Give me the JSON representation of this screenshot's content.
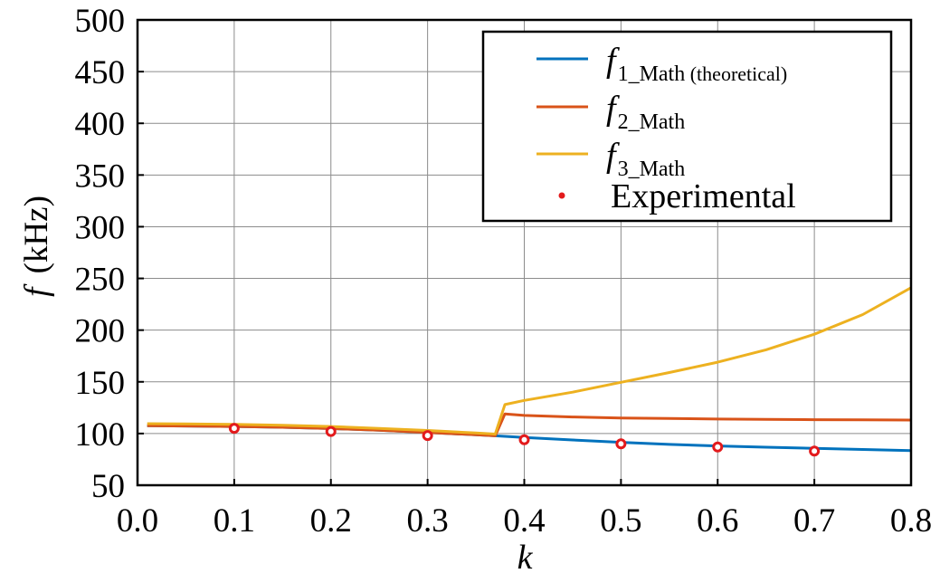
{
  "chart_data": {
    "type": "line",
    "xlabel": "k",
    "ylabel": {
      "symbol": "f",
      "unit": "(kHz)"
    },
    "xlim": [
      0.0,
      0.8
    ],
    "ylim": [
      50,
      500
    ],
    "xticks": [
      "0.0",
      "0.1",
      "0.2",
      "0.3",
      "0.4",
      "0.5",
      "0.6",
      "0.7",
      "0.8"
    ],
    "yticks": [
      "50",
      "100",
      "150",
      "200",
      "250",
      "300",
      "350",
      "400",
      "450",
      "500"
    ],
    "grid": true,
    "legend_position": "top-right",
    "series": [
      {
        "name": {
          "symbol": "f",
          "sub": "1_Math",
          "suffix": " (theoretical)"
        },
        "kind": "line",
        "color": "#0072BD",
        "x": [
          0.01,
          0.05,
          0.1,
          0.15,
          0.2,
          0.25,
          0.3,
          0.35,
          0.37,
          0.4,
          0.45,
          0.5,
          0.55,
          0.6,
          0.65,
          0.7,
          0.75,
          0.8
        ],
        "y": [
          107.5,
          107.3,
          106.8,
          106.0,
          104.8,
          103.2,
          101.0,
          98.8,
          97.8,
          96.2,
          93.8,
          91.5,
          89.5,
          88.0,
          86.8,
          85.7,
          84.6,
          83.5
        ]
      },
      {
        "name": {
          "symbol": "f",
          "sub": "2_Math",
          "suffix": ""
        },
        "kind": "line",
        "color": "#D95319",
        "x": [
          0.01,
          0.05,
          0.1,
          0.15,
          0.2,
          0.25,
          0.3,
          0.35,
          0.37,
          0.38,
          0.4,
          0.45,
          0.5,
          0.55,
          0.6,
          0.65,
          0.7,
          0.75,
          0.8
        ],
        "y": [
          107.5,
          107.3,
          106.8,
          106.0,
          104.8,
          103.2,
          101.0,
          98.8,
          97.8,
          119.0,
          117.5,
          116.0,
          115.0,
          114.5,
          114.0,
          113.7,
          113.4,
          113.2,
          113.0
        ]
      },
      {
        "name": {
          "symbol": "f",
          "sub": "3_Math",
          "suffix": ""
        },
        "kind": "line",
        "color": "#EDB120",
        "x": [
          0.01,
          0.05,
          0.1,
          0.15,
          0.2,
          0.25,
          0.3,
          0.35,
          0.37,
          0.38,
          0.4,
          0.45,
          0.5,
          0.55,
          0.6,
          0.65,
          0.7,
          0.75,
          0.8
        ],
        "y": [
          109.5,
          109.3,
          108.8,
          108.0,
          106.8,
          105.0,
          103.0,
          100.5,
          99.5,
          128.0,
          132.0,
          140.0,
          149.5,
          159.0,
          169.0,
          181.0,
          196.0,
          215.0,
          241.0
        ]
      },
      {
        "name": {
          "symbol": "",
          "sub": "",
          "suffix": "Experimental"
        },
        "kind": "scatter",
        "color": "#E31A1C",
        "x": [
          0.1,
          0.2,
          0.3,
          0.4,
          0.5,
          0.6,
          0.7
        ],
        "y": [
          105.0,
          102.0,
          98.0,
          94.0,
          90.0,
          87.0,
          83.0
        ]
      }
    ]
  }
}
